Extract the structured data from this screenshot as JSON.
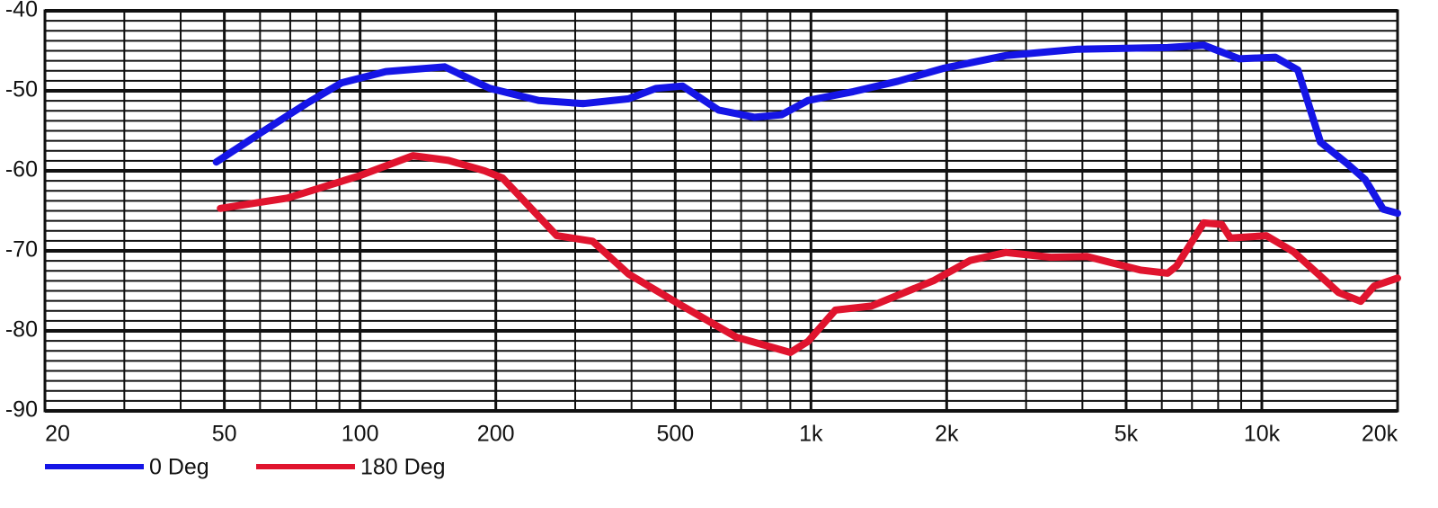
{
  "chart_data": {
    "type": "line",
    "xscale": "log",
    "grid": true,
    "xlim": [
      20,
      20000
    ],
    "ylim": [
      -90,
      -40
    ],
    "xticks": [
      20,
      50,
      100,
      200,
      500,
      {
        "value": 1000,
        "label": "1k"
      },
      {
        "value": 2000,
        "label": "2k"
      },
      {
        "value": 5000,
        "label": "5k"
      },
      {
        "value": 10000,
        "label": "10k"
      },
      {
        "value": 20000,
        "label": "20k"
      }
    ],
    "minor_xticks": [
      30,
      40,
      60,
      70,
      80,
      90,
      300,
      400,
      600,
      700,
      800,
      900,
      3000,
      4000,
      6000,
      7000,
      8000,
      9000
    ],
    "yticks": [
      -90,
      -80,
      -70,
      -60,
      -50,
      -40
    ],
    "minor_yticks": [
      -41.25,
      -42.5,
      -43.75,
      -45,
      -46.25,
      -47.5,
      -48.75,
      -51.25,
      -52.5,
      -53.75,
      -55,
      -56.25,
      -57.5,
      -58.75,
      -61.25,
      -62.5,
      -63.75,
      -65,
      -66.25,
      -67.5,
      -68.75,
      -71.25,
      -72.5,
      -73.75,
      -75,
      -76.25,
      -77.5,
      -78.75,
      -81.25,
      -82.5,
      -83.75,
      -85,
      -86.25,
      -87.5,
      -88.75
    ],
    "series": [
      {
        "name": "0 Deg",
        "color": "#1515e6",
        "x": [
          48,
          60,
          76,
          91,
          114,
          154,
          194,
          249,
          313,
          394,
          453,
          519,
          624,
          750,
          860,
          986,
          1242,
          1560,
          1963,
          2705,
          3908,
          6182,
          7430,
          8913,
          10716,
          12020,
          13490,
          15460,
          16950,
          18580,
          20000
        ],
        "values": [
          -58.9,
          -55.3,
          -51.6,
          -49.0,
          -47.6,
          -47.0,
          -49.7,
          -51.2,
          -51.6,
          -51.0,
          -49.7,
          -49.4,
          -52.4,
          -53.3,
          -53.0,
          -51.2,
          -50.1,
          -48.8,
          -47.2,
          -45.6,
          -44.8,
          -44.6,
          -44.3,
          -46.0,
          -45.8,
          -47.4,
          -56.4,
          -59.1,
          -61.1,
          -64.8,
          -65.3
        ]
      },
      {
        "name": "180 Deg",
        "color": "#e0142e",
        "x": [
          49,
          69,
          100,
          131,
          157,
          189,
          207,
          273,
          328,
          394,
          519,
          684,
          900,
          986,
          1133,
          1361,
          1875,
          2254,
          2705,
          3404,
          4093,
          5383,
          6182,
          6472,
          7430,
          8150,
          8517,
          10230,
          11750,
          14790,
          16570,
          17750,
          20000
        ],
        "values": [
          -64.7,
          -63.4,
          -60.6,
          -58.1,
          -58.7,
          -60.0,
          -60.9,
          -68.1,
          -68.8,
          -72.9,
          -76.9,
          -80.8,
          -82.7,
          -81.3,
          -77.4,
          -76.9,
          -73.7,
          -71.2,
          -70.2,
          -70.8,
          -70.7,
          -72.4,
          -72.8,
          -71.9,
          -66.5,
          -66.7,
          -68.4,
          -68.1,
          -70.1,
          -75.2,
          -76.3,
          -74.4,
          -73.4
        ]
      }
    ]
  }
}
